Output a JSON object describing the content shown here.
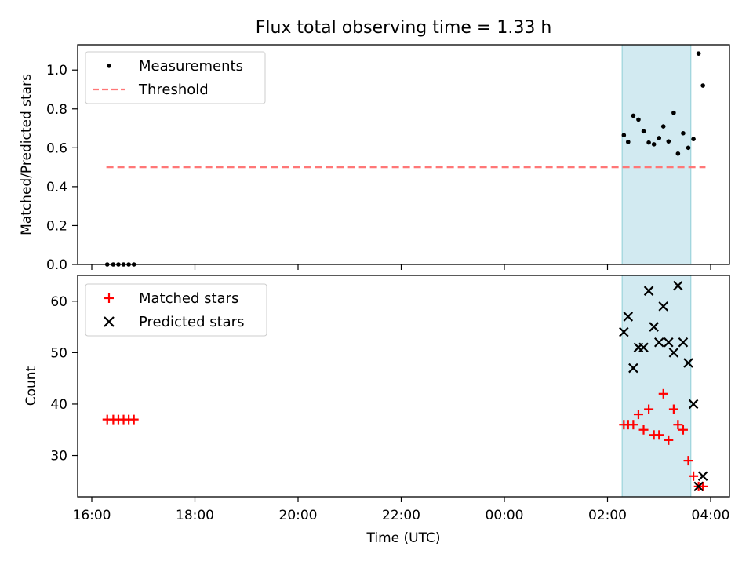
{
  "chart_data": [
    {
      "type": "scatter",
      "title": "Flux total observing time = 1.33 h",
      "xlabel": "",
      "ylabel": "Matched/Predicted stars",
      "ylim": [
        0,
        1.13
      ],
      "yticks": [
        0.0,
        0.2,
        0.4,
        0.6,
        0.8,
        1.0
      ],
      "ytick_labels": [
        "0.0",
        "0.2",
        "0.4",
        "0.6",
        "0.8",
        "1.0"
      ],
      "shaded_interval": {
        "from": "02:17",
        "to": "03:37",
        "color": "#add8e6"
      },
      "legend": {
        "placement": "top-left",
        "entries": [
          "Measurements",
          "Threshold"
        ]
      },
      "threshold": {
        "name": "Threshold",
        "y": 0.5,
        "x_from": "16:17",
        "x_to": "03:54",
        "color": "#ff7777",
        "style": "dashed"
      },
      "series": [
        {
          "name": "Measurements",
          "color": "#000000",
          "marker": "dot",
          "x": [
            "16:18",
            "16:25",
            "16:31",
            "16:37",
            "16:43",
            "16:49",
            "02:19",
            "02:24",
            "02:30",
            "02:36",
            "02:42",
            "02:48",
            "02:54",
            "03:00",
            "03:05",
            "03:11",
            "03:17",
            "03:22",
            "03:28",
            "03:34",
            "03:40",
            "03:46",
            "03:51"
          ],
          "y": [
            0.0,
            0.0,
            0.0,
            0.0,
            0.0,
            0.0,
            0.665,
            0.63,
            0.765,
            0.745,
            0.685,
            0.627,
            0.618,
            0.65,
            0.71,
            0.633,
            0.78,
            0.57,
            0.675,
            0.6,
            0.645,
            1.085,
            0.92
          ]
        }
      ]
    },
    {
      "type": "scatter",
      "title": "",
      "xlabel": "Time (UTC)",
      "ylabel": "Count",
      "ylim": [
        22,
        65
      ],
      "yticks": [
        30,
        40,
        50,
        60
      ],
      "ytick_labels": [
        "30",
        "40",
        "50",
        "60"
      ],
      "xticks": [
        "16:00",
        "18:00",
        "20:00",
        "22:00",
        "00:00",
        "02:00",
        "04:00"
      ],
      "shaded_interval": {
        "from": "02:17",
        "to": "03:37",
        "color": "#add8e6"
      },
      "legend": {
        "placement": "top-left",
        "entries": [
          "Matched stars",
          "Predicted stars"
        ]
      },
      "series": [
        {
          "name": "Matched stars",
          "color": "#ff0000",
          "marker": "plus",
          "x": [
            "16:18",
            "16:25",
            "16:31",
            "16:37",
            "16:43",
            "16:49",
            "02:19",
            "02:24",
            "02:30",
            "02:36",
            "02:42",
            "02:48",
            "02:54",
            "03:00",
            "03:05",
            "03:11",
            "03:17",
            "03:22",
            "03:28",
            "03:34",
            "03:40",
            "03:46",
            "03:51"
          ],
          "y": [
            37,
            37,
            37,
            37,
            37,
            37,
            36,
            36,
            36,
            38,
            35,
            39,
            34,
            34,
            42,
            33,
            39,
            36,
            35,
            29,
            26,
            24,
            24
          ]
        },
        {
          "name": "Predicted stars",
          "color": "#000000",
          "marker": "x",
          "x": [
            "02:19",
            "02:24",
            "02:30",
            "02:36",
            "02:42",
            "02:48",
            "02:54",
            "03:00",
            "03:05",
            "03:11",
            "03:17",
            "03:22",
            "03:28",
            "03:34",
            "03:40",
            "03:46",
            "03:51"
          ],
          "y": [
            54,
            57,
            47,
            51,
            51,
            62,
            55,
            52,
            59,
            52,
            50,
            63,
            52,
            48,
            40,
            24,
            26
          ]
        }
      ]
    }
  ]
}
